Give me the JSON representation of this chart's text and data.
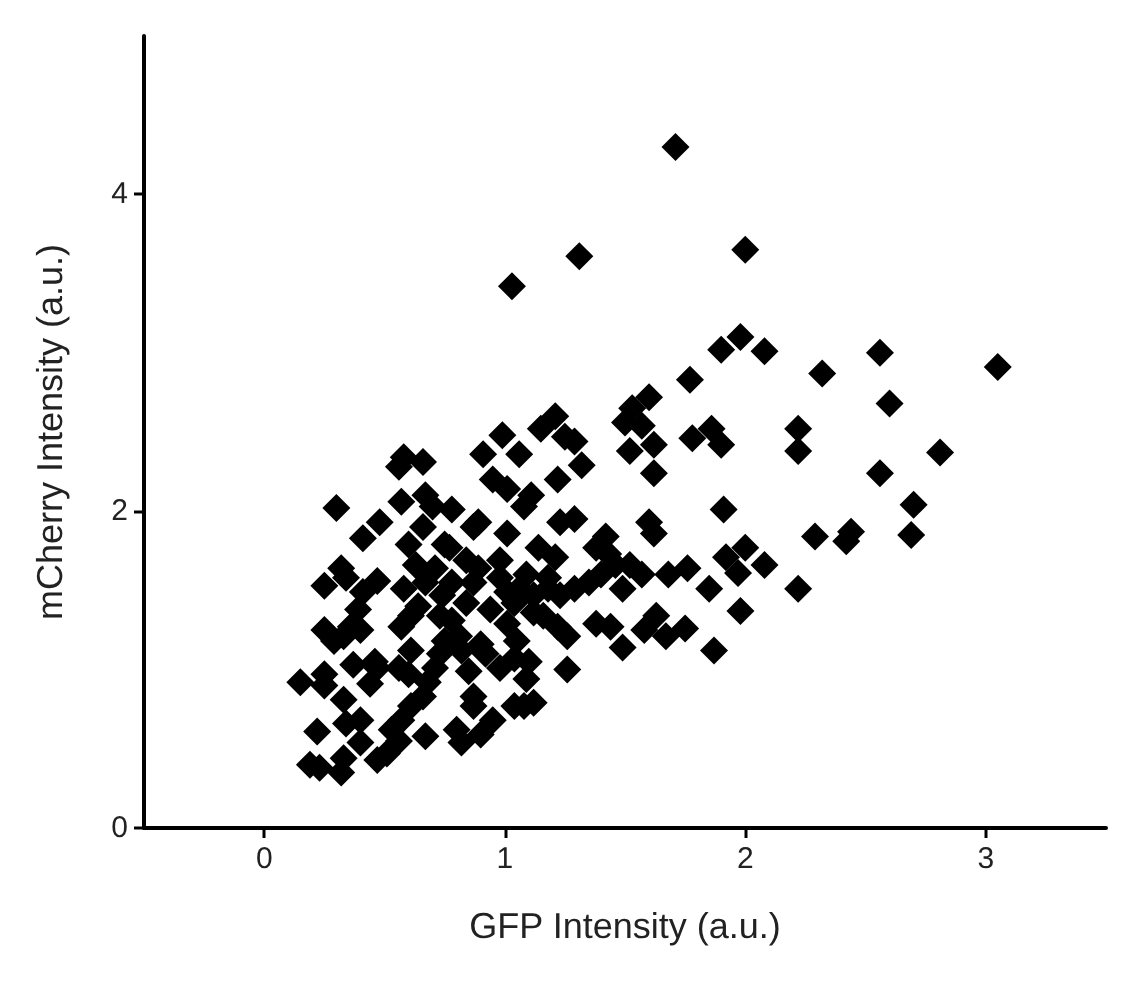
{
  "chart_data": {
    "type": "scatter",
    "xlabel": "GFP Intensity (a.u.)",
    "ylabel": "mCherry Intensity (a.u.)",
    "xlim": [
      -0.5,
      3.5
    ],
    "xticks": [
      0,
      1,
      2,
      3
    ],
    "ylim": [
      0,
      5
    ],
    "yticks": [
      0,
      2,
      4
    ],
    "grid": false,
    "marker": "diamond",
    "series": [
      {
        "color": "#000000",
        "x": [
          1.71,
          1.31,
          1.03,
          2.0,
          1.98,
          1.9,
          2.08,
          2.56,
          2.32,
          3.05,
          1.77,
          2.6,
          2.81,
          2.56,
          2.7,
          2.69,
          2.22,
          2.22,
          2.29,
          2.44,
          2.42,
          2.22,
          1.78,
          1.86,
          1.9,
          1.91,
          1.92,
          2.0,
          2.08,
          1.97,
          1.98,
          1.87,
          1.75,
          1.85,
          1.76,
          1.68,
          1.67,
          1.6,
          1.53,
          1.5,
          1.57,
          1.52,
          1.62,
          1.62,
          1.6,
          1.62,
          1.42,
          1.43,
          1.52,
          1.57,
          1.49,
          1.63,
          1.58,
          1.49,
          1.44,
          1.38,
          1.21,
          1.15,
          1.25,
          1.29,
          1.32,
          1.22,
          1.11,
          1.08,
          0.99,
          1.06,
          0.91,
          0.95,
          1.01,
          1.01,
          1.23,
          1.29,
          1.14,
          1.21,
          0.87,
          0.89,
          0.78,
          0.75,
          0.67,
          0.7,
          0.58,
          0.66,
          0.56,
          0.57,
          0.66,
          0.6,
          0.3,
          0.41,
          0.48,
          0.32,
          0.25,
          0.34,
          0.47,
          0.41,
          0.39,
          0.36,
          0.25,
          0.29,
          0.33,
          0.4,
          0.37,
          0.47,
          0.25,
          0.15,
          0.25,
          0.33,
          0.44,
          0.46,
          0.22,
          0.34,
          0.4,
          0.4,
          0.19,
          0.23,
          0.32,
          0.33,
          0.47,
          0.51,
          0.56,
          0.53,
          0.57,
          0.61,
          0.66,
          0.68,
          0.71,
          0.73,
          0.75,
          0.67,
          0.56,
          0.6,
          0.61,
          0.57,
          0.61,
          0.64,
          0.58,
          0.67,
          0.63,
          0.71,
          0.74,
          0.78,
          0.81,
          0.82,
          0.85,
          0.87,
          0.87,
          0.8,
          0.82,
          0.95,
          1.04,
          1.12,
          1.09,
          1.1,
          1.04,
          0.98,
          0.92,
          0.9,
          1.26,
          1.26,
          1.22,
          1.16,
          1.05,
          1.01,
          0.94,
          0.84,
          0.87,
          0.89,
          0.84,
          0.98,
          1.01,
          1.06,
          1.12,
          1.18,
          1.23,
          1.29,
          1.35,
          1.4,
          1.46,
          1.38,
          1.18,
          1.09,
          1.04,
          1.12,
          0.98,
          0.78,
          0.73,
          0.77,
          0.9,
          1.08
        ],
        "values": [
          4.3,
          3.61,
          3.42,
          3.65,
          3.1,
          3.02,
          3.01,
          3.0,
          2.87,
          2.91,
          2.83,
          2.68,
          2.37,
          2.24,
          2.04,
          1.85,
          2.52,
          2.38,
          1.84,
          1.87,
          1.81,
          1.51,
          2.46,
          2.52,
          2.42,
          2.01,
          1.71,
          1.77,
          1.66,
          1.61,
          1.37,
          1.12,
          1.26,
          1.51,
          1.64,
          1.6,
          1.21,
          2.72,
          2.65,
          2.56,
          2.54,
          2.38,
          2.42,
          2.24,
          1.93,
          1.86,
          1.84,
          1.73,
          1.66,
          1.6,
          1.51,
          1.34,
          1.25,
          1.14,
          1.27,
          1.29,
          2.6,
          2.52,
          2.47,
          2.44,
          2.29,
          2.2,
          2.1,
          2.03,
          2.48,
          2.36,
          2.36,
          2.2,
          2.14,
          1.86,
          1.93,
          1.95,
          1.77,
          1.71,
          1.9,
          1.93,
          2.01,
          1.79,
          2.1,
          2.03,
          2.34,
          2.31,
          2.28,
          2.06,
          1.9,
          1.79,
          2.02,
          1.83,
          1.93,
          1.64,
          1.53,
          1.58,
          1.56,
          1.49,
          1.38,
          1.27,
          1.25,
          1.18,
          1.21,
          1.25,
          1.03,
          1.01,
          0.97,
          0.92,
          0.9,
          0.81,
          0.91,
          1.05,
          0.61,
          0.66,
          0.68,
          0.54,
          0.4,
          0.38,
          0.35,
          0.44,
          0.43,
          0.47,
          0.55,
          0.62,
          0.68,
          0.77,
          0.83,
          0.92,
          1.01,
          1.1,
          1.18,
          0.58,
          1.01,
          0.97,
          1.12,
          1.27,
          1.34,
          1.4,
          1.51,
          1.55,
          1.66,
          1.64,
          1.47,
          1.31,
          1.21,
          1.12,
          0.99,
          0.83,
          0.77,
          0.62,
          0.54,
          0.68,
          0.77,
          0.79,
          0.94,
          1.05,
          1.07,
          1.01,
          1.1,
          1.16,
          1.0,
          1.21,
          1.27,
          1.34,
          1.18,
          1.29,
          1.38,
          1.42,
          1.55,
          1.64,
          1.69,
          1.58,
          1.49,
          1.51,
          1.47,
          1.51,
          1.47,
          1.51,
          1.55,
          1.6,
          1.66,
          1.77,
          1.58,
          1.6,
          1.42,
          1.36,
          1.69,
          1.55,
          1.34,
          1.77,
          0.59,
          0.77
        ]
      }
    ]
  }
}
